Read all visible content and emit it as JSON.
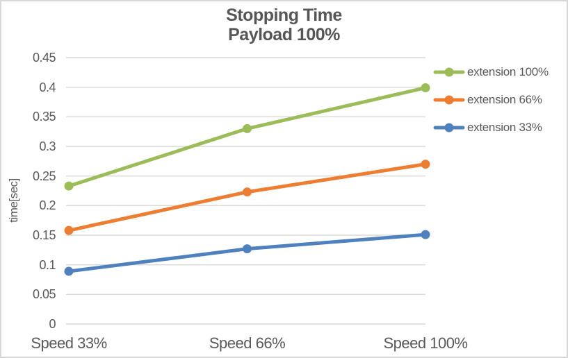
{
  "chart_data": {
    "type": "line",
    "title_lines": [
      "Stopping Time",
      "Payload 100%"
    ],
    "categories": [
      "Speed 33%",
      "Speed 66%",
      "Speed 100%"
    ],
    "series": [
      {
        "name": "extension 100%",
        "color": "#9CBB59",
        "values": [
          0.233,
          0.33,
          0.399
        ]
      },
      {
        "name": "extension 66%",
        "color": "#ED7D31",
        "values": [
          0.158,
          0.223,
          0.27
        ]
      },
      {
        "name": "extension 33%",
        "color": "#4E81BD",
        "values": [
          0.089,
          0.127,
          0.151
        ]
      }
    ],
    "xlabel": "",
    "ylabel": "time[sec]",
    "ylim": [
      0,
      0.45
    ],
    "ytick_step": 0.05,
    "ytick_labels": [
      "0",
      "0.05",
      "0.1",
      "0.15",
      "0.2",
      "0.25",
      "0.3",
      "0.35",
      "0.4",
      "0.45"
    ],
    "grid": true,
    "gridline_color": "#D9D9D9",
    "legend_position": "right",
    "text_color": "#595959",
    "marker": "circle"
  }
}
